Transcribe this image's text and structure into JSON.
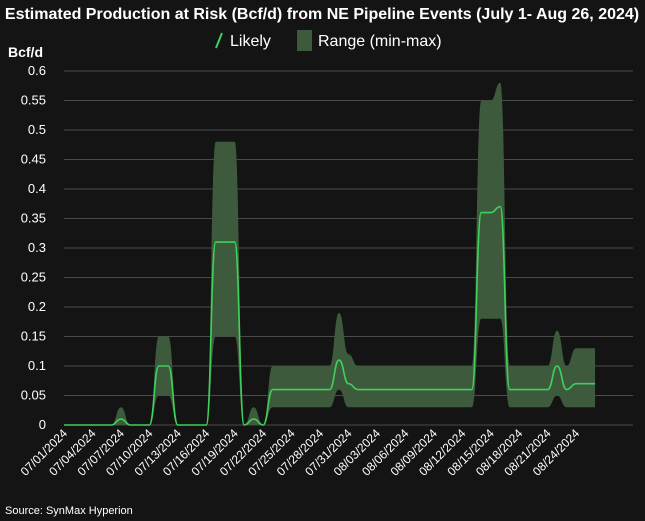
{
  "chart_data": {
    "type": "area",
    "title": "Estimated Production at Risk (Bcf/d) from NE Pipeline Events (July 1- Aug 26, 2024)",
    "ylabel": "Bcf/d",
    "xlabel": "",
    "source": "Source: SynMax Hyperion",
    "ylim": [
      0,
      0.6
    ],
    "yticks": [
      "0",
      "0.05",
      "0.1",
      "0.15",
      "0.2",
      "0.25",
      "0.3",
      "0.35",
      "0.4",
      "0.45",
      "0.5",
      "0.55",
      "0.6"
    ],
    "xlim": [
      0,
      60
    ],
    "xtick_labels": [
      "07/01/2024",
      "07/04/2024",
      "07/07/2024",
      "07/10/2024",
      "07/13/2024",
      "07/16/2024",
      "07/19/2024",
      "07/22/2024",
      "07/25/2024",
      "07/28/2024",
      "07/31/2024",
      "08/03/2024",
      "08/06/2024",
      "08/09/2024",
      "08/12/2024",
      "08/15/2024",
      "08/18/2024",
      "08/21/2024",
      "08/24/2024"
    ],
    "legend": {
      "position": "top-center",
      "likely_label": "Likely",
      "range_label": "Range (min-max)"
    },
    "colors": {
      "likely": "#3dd25a",
      "range": "#3e5a3d",
      "background": "#141414",
      "grid": "#4a4a4a",
      "text": "#ffffff"
    },
    "series": [
      {
        "name": "Likely",
        "x": [
          0,
          1,
          2,
          3,
          4,
          5,
          6,
          7,
          8,
          9,
          10,
          11,
          12,
          13,
          14,
          15,
          16,
          17,
          18,
          19,
          20,
          21,
          22,
          23,
          24,
          25,
          26,
          27,
          28,
          29,
          30,
          31,
          32,
          33,
          34,
          35,
          36,
          37,
          38,
          39,
          40,
          41,
          42,
          43,
          44,
          45,
          46,
          47,
          48,
          49,
          50,
          51,
          52,
          53,
          54,
          55,
          56
        ],
        "values": [
          0,
          0,
          0,
          0,
          0,
          0,
          0.01,
          0,
          0,
          0,
          0.1,
          0.1,
          0,
          0,
          0,
          0,
          0.31,
          0.31,
          0.31,
          0,
          0.01,
          0,
          0.06,
          0.06,
          0.06,
          0.06,
          0.06,
          0.06,
          0.06,
          0.11,
          0.07,
          0.06,
          0.06,
          0.06,
          0.06,
          0.06,
          0.06,
          0.06,
          0.06,
          0.06,
          0.06,
          0.06,
          0.06,
          0.06,
          0.36,
          0.36,
          0.37,
          0.06,
          0.06,
          0.06,
          0.06,
          0.06,
          0.1,
          0.06,
          0.07,
          0.07,
          0.07
        ]
      },
      {
        "name": "Range (min)",
        "x": [
          0,
          1,
          2,
          3,
          4,
          5,
          6,
          7,
          8,
          9,
          10,
          11,
          12,
          13,
          14,
          15,
          16,
          17,
          18,
          19,
          20,
          21,
          22,
          23,
          24,
          25,
          26,
          27,
          28,
          29,
          30,
          31,
          32,
          33,
          34,
          35,
          36,
          37,
          38,
          39,
          40,
          41,
          42,
          43,
          44,
          45,
          46,
          47,
          48,
          49,
          50,
          51,
          52,
          53,
          54,
          55,
          56
        ],
        "values": [
          0,
          0,
          0,
          0,
          0,
          0,
          0,
          0,
          0,
          0,
          0.05,
          0.05,
          0,
          0,
          0,
          0,
          0.15,
          0.15,
          0.15,
          0,
          0,
          0,
          0.03,
          0.03,
          0.03,
          0.03,
          0.03,
          0.03,
          0.03,
          0.06,
          0.03,
          0.03,
          0.03,
          0.03,
          0.03,
          0.03,
          0.03,
          0.03,
          0.03,
          0.03,
          0.03,
          0.03,
          0.03,
          0.03,
          0.18,
          0.18,
          0.18,
          0.03,
          0.03,
          0.03,
          0.03,
          0.03,
          0.05,
          0.03,
          0.03,
          0.03,
          0.03
        ]
      },
      {
        "name": "Range (max)",
        "x": [
          0,
          1,
          2,
          3,
          4,
          5,
          6,
          7,
          8,
          9,
          10,
          11,
          12,
          13,
          14,
          15,
          16,
          17,
          18,
          19,
          20,
          21,
          22,
          23,
          24,
          25,
          26,
          27,
          28,
          29,
          30,
          31,
          32,
          33,
          34,
          35,
          36,
          37,
          38,
          39,
          40,
          41,
          42,
          43,
          44,
          45,
          46,
          47,
          48,
          49,
          50,
          51,
          52,
          53,
          54,
          55,
          56
        ],
        "values": [
          0,
          0,
          0,
          0,
          0,
          0,
          0.03,
          0,
          0,
          0,
          0.15,
          0.15,
          0,
          0,
          0,
          0,
          0.48,
          0.48,
          0.48,
          0,
          0.03,
          0,
          0.1,
          0.1,
          0.1,
          0.1,
          0.1,
          0.1,
          0.1,
          0.19,
          0.12,
          0.1,
          0.1,
          0.1,
          0.1,
          0.1,
          0.1,
          0.1,
          0.1,
          0.1,
          0.1,
          0.1,
          0.1,
          0.1,
          0.55,
          0.55,
          0.58,
          0.1,
          0.1,
          0.1,
          0.1,
          0.1,
          0.16,
          0.1,
          0.13,
          0.13,
          0.13
        ]
      }
    ]
  }
}
